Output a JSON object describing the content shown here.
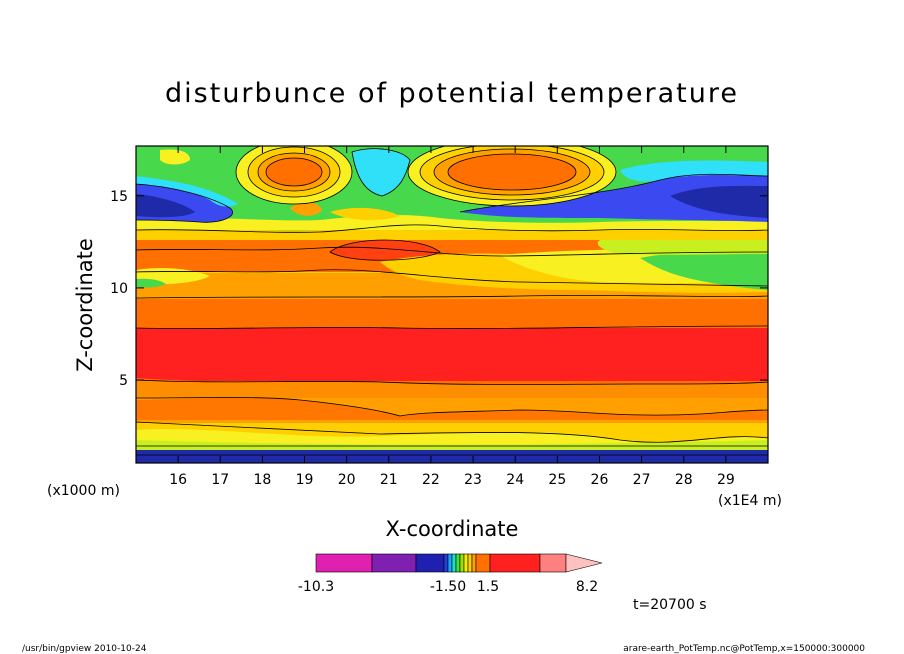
{
  "chart_data": {
    "type": "heatmap",
    "title": "disturbunce of potential temperature",
    "xlabel": "X-coordinate",
    "ylabel": "Z-coordinate",
    "x_unit": "(x1E4 m)",
    "y_unit": "(x1000 m)",
    "xlim": [
      15,
      30
    ],
    "ylim": [
      0.5,
      17.7
    ],
    "x_ticks": [
      "16",
      "17",
      "18",
      "19",
      "20",
      "21",
      "22",
      "23",
      "24",
      "25",
      "26",
      "27",
      "28",
      "29"
    ],
    "y_ticks": [
      "5",
      "10",
      "15"
    ],
    "colorbar": {
      "labels": [
        "-10.3",
        "-1.50",
        "1.5",
        "8.2"
      ],
      "colors": [
        "#e020b0",
        "#8020b0",
        "#2020b0",
        "#2040e0",
        "#20a0ff",
        "#20e0c0",
        "#40e040",
        "#a0e000",
        "#f0f000",
        "#ffd000",
        "#ffa000",
        "#ff7000",
        "#ff2020",
        "#ff8080",
        "#ffc0c0"
      ]
    },
    "time_label": "t=20700 s"
  },
  "footer": {
    "left": "/usr/bin/gpview   2010-10-24",
    "right": "arare-earth_PotTemp.nc@PotTemp,x=150000:300000"
  },
  "colors": {
    "deep_blue": "#1e2aa8",
    "blue": "#3a4af0",
    "cyan": "#30e0f8",
    "green": "#48d84c",
    "yellow_green": "#c8f020",
    "yellow": "#f8f020",
    "gold": "#ffd000",
    "light_orange": "#ffa000",
    "orange": "#ff7000",
    "red_orange": "#ff4010",
    "red": "#ff2020"
  }
}
